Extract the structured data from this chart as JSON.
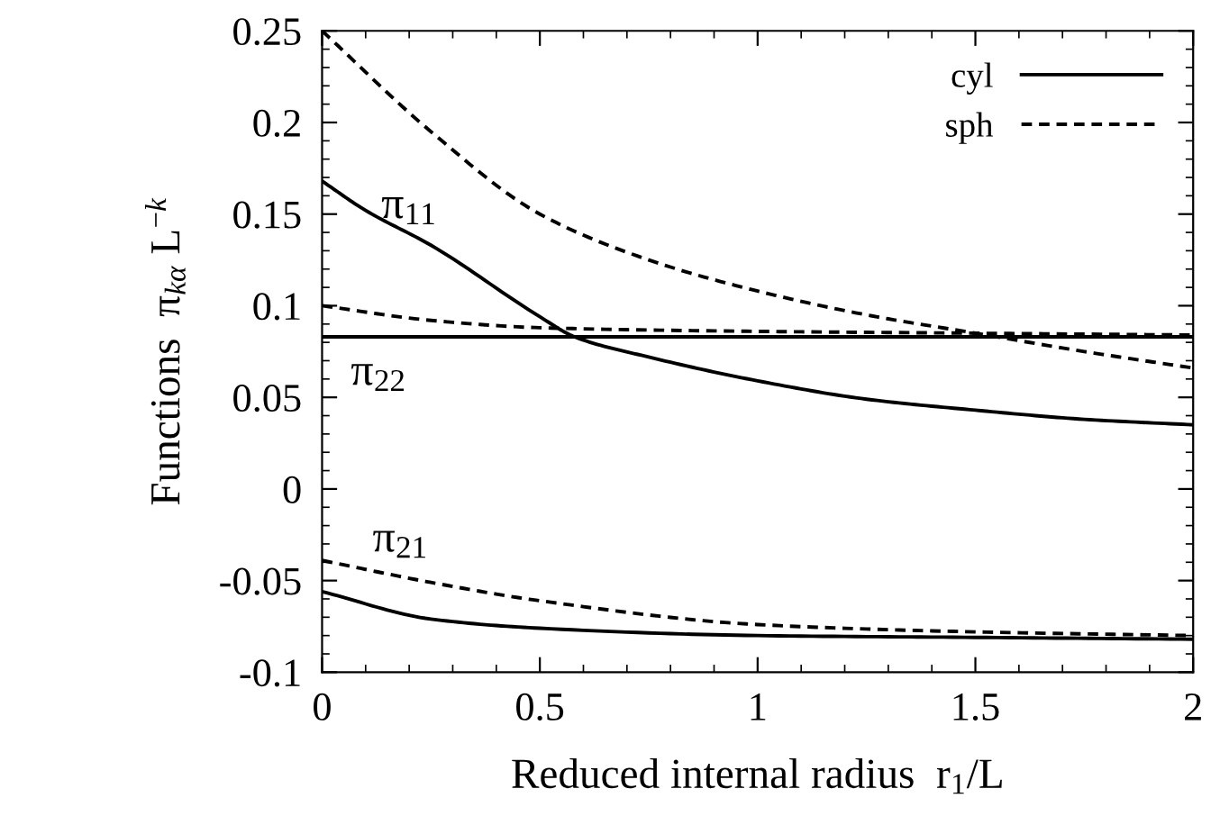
{
  "chart_data": {
    "type": "line",
    "xlabel": "Reduced internal radius  r$_{1}$/L",
    "ylabel": "Functions  π$_{kα}$ L$^{−k}$",
    "xlim": [
      0,
      2
    ],
    "ylim": [
      -0.1,
      0.25
    ],
    "xticks": [
      0,
      0.5,
      1,
      1.5,
      2
    ],
    "yticks": [
      -0.1,
      -0.05,
      0,
      0.05,
      0.1,
      0.15,
      0.2,
      0.25
    ],
    "grid": false,
    "legend": "top right",
    "marker": "none",
    "series": [
      {
        "name": "cyl",
        "color": "#000000",
        "line_style": "solid",
        "x": [
          0,
          0.1,
          0.25,
          0.5,
          0.58,
          0.75,
          1,
          1.25,
          1.5,
          1.75,
          2
        ],
        "values": [
          0.168,
          0.152,
          0.133,
          0.094,
          0.083,
          0.072,
          0.059,
          0.049,
          0.043,
          0.038,
          0.035
        ]
      },
      {
        "name": "sph",
        "color": "#000000",
        "line_style": "dashed",
        "x": [
          0,
          0.25,
          0.5,
          0.75,
          1,
          1.25,
          1.5,
          1.75,
          2
        ],
        "values": [
          0.25,
          0.195,
          0.15,
          0.125,
          0.108,
          0.095,
          0.085,
          0.075,
          0.066
        ]
      },
      {
        "color": "#000000",
        "line_style": "solid",
        "x": [
          0,
          2
        ],
        "values": [
          0.083,
          0.083
        ]
      },
      {
        "color": "#000000",
        "line_style": "dashed",
        "x": [
          0,
          0.25,
          0.5,
          1,
          1.5,
          2
        ],
        "values": [
          0.1,
          0.092,
          0.088,
          0.086,
          0.085,
          0.084
        ]
      },
      {
        "color": "#000000",
        "line_style": "solid",
        "x": [
          0,
          0.25,
          0.5,
          1,
          1.5,
          2
        ],
        "values": [
          -0.056,
          -0.071,
          -0.076,
          -0.08,
          -0.081,
          -0.082
        ]
      },
      {
        "color": "#000000",
        "line_style": "dashed",
        "x": [
          0,
          0.25,
          0.5,
          1,
          1.5,
          2
        ],
        "values": [
          -0.039,
          -0.051,
          -0.061,
          -0.074,
          -0.078,
          -0.08
        ]
      }
    ],
    "annotations": [
      "π$_{11}$",
      "π$_{22}$",
      "π$_{21}$"
    ]
  }
}
